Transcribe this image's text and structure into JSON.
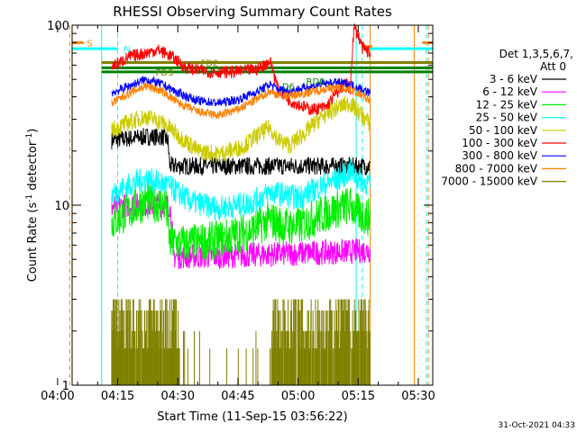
{
  "chart_data": {
    "type": "line",
    "title": "RHESSI Observing Summary Count Rates",
    "xlabel": "Start Time (11-Sep-15 03:56:22)",
    "ylabel": "Count Rate (s",
    "ylabel_sup": "-1",
    "ylabel_tail": " detector",
    "ylabel_end": ")",
    "yscale": "log",
    "ylim": [
      1,
      100
    ],
    "xlim_minutes": [
      3.63,
      93.6
    ],
    "x_ticks": [
      {
        "label": "04:00",
        "min": 0
      },
      {
        "label": "04:15",
        "min": 15
      },
      {
        "label": "04:30",
        "min": 30
      },
      {
        "label": "04:45",
        "min": 45
      },
      {
        "label": "05:00",
        "min": 60
      },
      {
        "label": "05:15",
        "min": 75
      },
      {
        "label": "05:30",
        "min": 90
      }
    ],
    "y_ticks": [
      {
        "label": "1",
        "value": 1
      },
      {
        "label": "10",
        "value": 10
      },
      {
        "label": "100",
        "value": 100
      }
    ],
    "legend": {
      "header1": "Det 1,3,5,6,7,",
      "header2": "Att 0",
      "entries": [
        {
          "label": "3 - 6 keV",
          "color": "#000000"
        },
        {
          "label": "6 - 12 keV",
          "color": "#ff00ff"
        },
        {
          "label": "12 - 25 keV",
          "color": "#00ee00"
        },
        {
          "label": "25 - 50 keV",
          "color": "#00ffff"
        },
        {
          "label": "50 - 100 keV",
          "color": "#cccc00"
        },
        {
          "label": "100 - 300 keV",
          "color": "#ff0000"
        },
        {
          "label": "300 - 800 keV",
          "color": "#0000ff"
        },
        {
          "label": "800 - 7000 keV",
          "color": "#ff8000"
        },
        {
          "label": "7000 - 15000 keV",
          "color": "#808000"
        }
      ]
    },
    "series": [
      {
        "name": "3 - 6 keV",
        "color": "#000000",
        "noise": 0.05,
        "x": [
          13.5,
          18,
          22,
          26,
          27.5,
          28,
          35,
          45,
          55,
          65,
          72,
          78
        ],
        "y": [
          23,
          23.5,
          24,
          24,
          23,
          16.5,
          16.5,
          16.5,
          16.5,
          16.5,
          16.5,
          16.5
        ]
      },
      {
        "name": "6 - 12 keV",
        "color": "#ff00ff",
        "noise": 0.07,
        "x": [
          13.5,
          16,
          18,
          28,
          29,
          40,
          50,
          60,
          70,
          78
        ],
        "y": [
          9.8,
          9.9,
          10,
          10,
          5.2,
          5.2,
          5.3,
          5.4,
          5.5,
          5.6
        ]
      },
      {
        "name": "12 - 25 keV",
        "color": "#00ee00",
        "noise": 0.11,
        "x": [
          13.5,
          18,
          22,
          27,
          28,
          33,
          40,
          48,
          53,
          56,
          60,
          65,
          70,
          73,
          75,
          78
        ],
        "y": [
          8,
          9.3,
          10.5,
          10,
          6.2,
          6.1,
          6.4,
          7.2,
          8.3,
          7.7,
          7.6,
          8.7,
          9.6,
          10,
          9,
          8.5
        ]
      },
      {
        "name": "25 - 50 keV",
        "color": "#00ffff",
        "noise": 0.07,
        "x": [
          13.5,
          18,
          22,
          27,
          33,
          40,
          48,
          53,
          56,
          60,
          65,
          70,
          73,
          75,
          78
        ],
        "y": [
          11.5,
          13,
          14,
          13,
          10.5,
          9.6,
          10.2,
          11.8,
          11.5,
          11,
          12.5,
          14,
          15.5,
          14,
          13
        ]
      },
      {
        "name": "50 - 100 keV",
        "color": "#cccc00",
        "noise": 0.05,
        "x": [
          13.5,
          18,
          22,
          26,
          30,
          35,
          40,
          46,
          50,
          53,
          55,
          58,
          62,
          66,
          70,
          73,
          75,
          78
        ],
        "y": [
          26,
          29,
          31,
          29,
          24.5,
          20,
          19.2,
          21,
          24.5,
          27,
          23,
          21.5,
          25.5,
          31,
          35,
          37,
          33,
          28
        ]
      },
      {
        "name": "100 - 300 keV",
        "color": "#ff0000",
        "noise": 0.035,
        "x": [
          13.5,
          16,
          18,
          22,
          25,
          28,
          32,
          38,
          44,
          50,
          53,
          55,
          58,
          63,
          67,
          70,
          72,
          73,
          74,
          75,
          76,
          78
        ],
        "y": [
          59,
          63,
          67,
          70,
          73,
          68,
          58,
          55,
          55,
          57,
          63,
          44,
          38,
          34,
          35,
          43,
          48,
          43,
          97,
          88,
          75,
          70
        ]
      },
      {
        "name": "300 - 800 keV",
        "color": "#0000ff",
        "noise": 0.025,
        "x": [
          13.5,
          18,
          22,
          26,
          30,
          35,
          40,
          45,
          50,
          53,
          55,
          58,
          62,
          66,
          70,
          73,
          75,
          78
        ],
        "y": [
          42,
          46,
          50,
          47,
          42,
          38,
          37,
          38.5,
          43,
          47,
          44,
          43,
          45,
          47,
          48,
          47,
          45,
          42
        ]
      },
      {
        "name": "800 - 7000 keV",
        "color": "#ff8000",
        "noise": 0.025,
        "x": [
          13.5,
          18,
          22,
          26,
          30,
          35,
          40,
          45,
          50,
          53,
          55,
          58,
          62,
          66,
          70,
          73,
          75,
          78
        ],
        "y": [
          37,
          42,
          46,
          43,
          37,
          33,
          31.5,
          34,
          39,
          43,
          41,
          40.5,
          42,
          44,
          45,
          44,
          42,
          38
        ]
      },
      {
        "name": "7000 - 15000 keV",
        "color": "#808000",
        "noise": 0,
        "x": [
          13.5,
          30,
          30.5,
          53,
          53.5,
          78
        ],
        "y": [
          1.4,
          1.6,
          1,
          1,
          1.6,
          1.6
        ]
      }
    ],
    "hlines": [
      {
        "y": 62,
        "x0": 11,
        "x1": 93.5,
        "color": "#808000"
      },
      {
        "y": 58,
        "x0": 11,
        "x1": 93.5,
        "color": "#008000"
      },
      {
        "y": 55,
        "x0": 11,
        "x1": 93.5,
        "color": "#008000"
      },
      {
        "y": 74,
        "x0": 3.7,
        "x1": 15,
        "color": "#00ffff"
      },
      {
        "y": 74,
        "x0": 76,
        "x1": 93.5,
        "color": "#00ffff"
      },
      {
        "y": 76,
        "x0": 76.5,
        "x1": 78.5,
        "color": "#ff8000"
      },
      {
        "y": 80,
        "x0": 3.7,
        "x1": 6.5,
        "color": "#ff8000"
      },
      {
        "y": 80,
        "x0": 91,
        "x1": 93.5,
        "color": "#ff8000"
      }
    ],
    "vlines": [
      {
        "x": 11,
        "color": "#00ffff",
        "dash": false
      },
      {
        "x": 15,
        "color": "#00ffff",
        "dash": true
      },
      {
        "x": 74.5,
        "color": "#00ffff",
        "dash": false
      },
      {
        "x": 76,
        "color": "#00ffff",
        "dash": true
      },
      {
        "x": 92,
        "color": "#00ffff",
        "dash": true
      },
      {
        "x": 3,
        "color": "#ff8000",
        "dash": true
      },
      {
        "x": 78,
        "color": "#ff8000",
        "dash": false
      },
      {
        "x": 89,
        "color": "#ff8000",
        "dash": false
      },
      {
        "x": 92.5,
        "color": "#ff8000",
        "dash": true
      }
    ],
    "flags": [
      {
        "label": "S",
        "x": 7.3,
        "y": 80,
        "color": "#ff8000"
      },
      {
        "label": "N",
        "x": 16.5,
        "y": 74,
        "color": "#00ffff"
      },
      {
        "label": "FD2",
        "x": 35.7,
        "y": 62,
        "color": "#808000"
      },
      {
        "label": "FD3",
        "x": 24.5,
        "y": 55,
        "color": "#808000"
      },
      {
        "label": "RD0",
        "x": 62,
        "y": 49,
        "color": "#008000"
      },
      {
        "label": "D6",
        "x": 56,
        "y": 46,
        "color": "#008000"
      }
    ],
    "timestamp": "31-Oct-2021 04:33"
  }
}
